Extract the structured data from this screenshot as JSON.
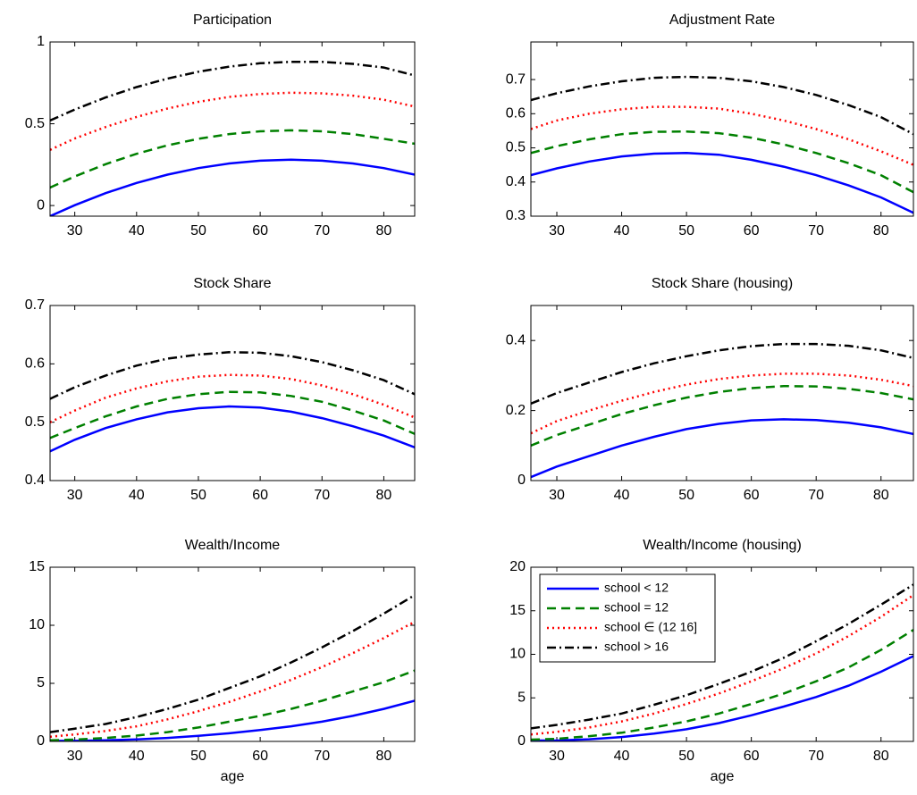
{
  "chart_data": [
    {
      "type": "line",
      "title": "Participation",
      "x": [
        26,
        30,
        35,
        40,
        45,
        50,
        55,
        60,
        65,
        70,
        75,
        80,
        85
      ],
      "xlim": [
        26,
        85
      ],
      "xticks": [
        30,
        40,
        50,
        60,
        70,
        80
      ],
      "ylim": [
        -0.065,
        1
      ],
      "yticks": [
        0,
        0.5,
        1
      ],
      "series": [
        {
          "color": "#0000ff",
          "style": "solid",
          "values": [
            -0.065,
            0.002,
            0.076,
            0.138,
            0.189,
            0.229,
            0.257,
            0.274,
            0.28,
            0.274,
            0.257,
            0.229,
            0.189
          ]
        },
        {
          "color": "#008000",
          "style": "dashed",
          "values": [
            0.11,
            0.178,
            0.253,
            0.316,
            0.368,
            0.408,
            0.437,
            0.454,
            0.46,
            0.454,
            0.437,
            0.408,
            0.378
          ]
        },
        {
          "color": "#ff0000",
          "style": "dotted",
          "values": [
            0.34,
            0.41,
            0.48,
            0.542,
            0.593,
            0.634,
            0.664,
            0.682,
            0.69,
            0.686,
            0.672,
            0.647,
            0.605
          ]
        },
        {
          "color": "#000000",
          "style": "dashdot",
          "values": [
            0.52,
            0.587,
            0.661,
            0.724,
            0.776,
            0.818,
            0.849,
            0.87,
            0.879,
            0.878,
            0.866,
            0.844,
            0.795
          ]
        }
      ]
    },
    {
      "type": "line",
      "title": "Adjustment Rate",
      "x": [
        26,
        30,
        35,
        40,
        45,
        50,
        55,
        60,
        65,
        70,
        75,
        80,
        85
      ],
      "xlim": [
        26,
        85
      ],
      "xticks": [
        30,
        40,
        50,
        60,
        70,
        80
      ],
      "ylim": [
        0.3,
        0.81
      ],
      "yticks": [
        0.3,
        0.4,
        0.5,
        0.6,
        0.7
      ],
      "series": [
        {
          "color": "#0000ff",
          "style": "solid",
          "values": [
            0.42,
            0.44,
            0.46,
            0.475,
            0.483,
            0.485,
            0.48,
            0.465,
            0.445,
            0.42,
            0.39,
            0.355,
            0.31
          ]
        },
        {
          "color": "#008000",
          "style": "dashed",
          "values": [
            0.485,
            0.505,
            0.525,
            0.54,
            0.547,
            0.548,
            0.543,
            0.53,
            0.51,
            0.485,
            0.455,
            0.42,
            0.37
          ]
        },
        {
          "color": "#ff0000",
          "style": "dotted",
          "values": [
            0.555,
            0.58,
            0.6,
            0.613,
            0.62,
            0.62,
            0.615,
            0.6,
            0.58,
            0.555,
            0.525,
            0.49,
            0.45
          ]
        },
        {
          "color": "#000000",
          "style": "dashdot",
          "values": [
            0.64,
            0.66,
            0.68,
            0.695,
            0.705,
            0.708,
            0.705,
            0.695,
            0.678,
            0.655,
            0.625,
            0.59,
            0.54
          ]
        }
      ]
    },
    {
      "type": "line",
      "title": "Stock Share",
      "x": [
        26,
        30,
        35,
        40,
        45,
        50,
        55,
        60,
        65,
        70,
        75,
        80,
        85
      ],
      "xlim": [
        26,
        85
      ],
      "xticks": [
        30,
        40,
        50,
        60,
        70,
        80
      ],
      "ylim": [
        0.4,
        0.7
      ],
      "yticks": [
        0.4,
        0.5,
        0.6,
        0.7
      ],
      "series": [
        {
          "color": "#0000ff",
          "style": "solid",
          "values": [
            0.45,
            0.47,
            0.49,
            0.505,
            0.517,
            0.524,
            0.527,
            0.525,
            0.518,
            0.507,
            0.493,
            0.477,
            0.457
          ]
        },
        {
          "color": "#008000",
          "style": "dashed",
          "values": [
            0.473,
            0.49,
            0.51,
            0.527,
            0.54,
            0.548,
            0.552,
            0.551,
            0.545,
            0.535,
            0.52,
            0.503,
            0.48
          ]
        },
        {
          "color": "#ff0000",
          "style": "dotted",
          "values": [
            0.5,
            0.52,
            0.542,
            0.558,
            0.57,
            0.578,
            0.581,
            0.58,
            0.574,
            0.563,
            0.548,
            0.53,
            0.508
          ]
        },
        {
          "color": "#000000",
          "style": "dashdot",
          "values": [
            0.54,
            0.56,
            0.58,
            0.597,
            0.609,
            0.616,
            0.62,
            0.619,
            0.613,
            0.603,
            0.589,
            0.572,
            0.548
          ]
        }
      ]
    },
    {
      "type": "line",
      "title": "Stock Share (housing)",
      "x": [
        26,
        30,
        35,
        40,
        45,
        50,
        55,
        60,
        65,
        70,
        75,
        80,
        85
      ],
      "xlim": [
        26,
        85
      ],
      "xticks": [
        30,
        40,
        50,
        60,
        70,
        80
      ],
      "ylim": [
        0,
        0.5
      ],
      "yticks": [
        0,
        0.2,
        0.4
      ],
      "series": [
        {
          "color": "#0000ff",
          "style": "solid",
          "values": [
            0.01,
            0.04,
            0.07,
            0.1,
            0.125,
            0.147,
            0.162,
            0.172,
            0.175,
            0.173,
            0.165,
            0.152,
            0.133
          ]
        },
        {
          "color": "#008000",
          "style": "dashed",
          "values": [
            0.1,
            0.13,
            0.16,
            0.19,
            0.215,
            0.237,
            0.253,
            0.264,
            0.27,
            0.269,
            0.262,
            0.25,
            0.232
          ]
        },
        {
          "color": "#ff0000",
          "style": "dotted",
          "values": [
            0.135,
            0.17,
            0.2,
            0.228,
            0.253,
            0.274,
            0.29,
            0.3,
            0.305,
            0.305,
            0.3,
            0.288,
            0.27
          ]
        },
        {
          "color": "#000000",
          "style": "dashdot",
          "values": [
            0.22,
            0.25,
            0.28,
            0.31,
            0.335,
            0.355,
            0.372,
            0.384,
            0.39,
            0.39,
            0.385,
            0.372,
            0.35
          ]
        }
      ]
    },
    {
      "type": "line",
      "title": "Wealth/Income",
      "xlabel": "age",
      "x": [
        26,
        30,
        35,
        40,
        45,
        50,
        55,
        60,
        65,
        70,
        75,
        80,
        85
      ],
      "xlim": [
        26,
        85
      ],
      "xticks": [
        30,
        40,
        50,
        60,
        70,
        80
      ],
      "ylim": [
        0,
        15
      ],
      "yticks": [
        0,
        5,
        10,
        15
      ],
      "series": [
        {
          "color": "#0000ff",
          "style": "solid",
          "values": [
            0.05,
            0.05,
            0.1,
            0.18,
            0.3,
            0.48,
            0.7,
            0.98,
            1.3,
            1.7,
            2.2,
            2.8,
            3.5
          ]
        },
        {
          "color": "#008000",
          "style": "dashed",
          "values": [
            0.1,
            0.15,
            0.3,
            0.5,
            0.8,
            1.2,
            1.7,
            2.2,
            2.8,
            3.5,
            4.3,
            5.1,
            6.1
          ]
        },
        {
          "color": "#ff0000",
          "style": "dotted",
          "values": [
            0.4,
            0.6,
            0.9,
            1.3,
            1.9,
            2.6,
            3.4,
            4.3,
            5.3,
            6.4,
            7.6,
            8.9,
            10.3
          ]
        },
        {
          "color": "#000000",
          "style": "dashdot",
          "values": [
            0.8,
            1.1,
            1.5,
            2.1,
            2.8,
            3.6,
            4.6,
            5.6,
            6.8,
            8.1,
            9.5,
            11,
            12.6
          ]
        }
      ]
    },
    {
      "type": "line",
      "title": "Wealth/Income (housing)",
      "xlabel": "age",
      "legend": "upper left",
      "x": [
        26,
        30,
        35,
        40,
        45,
        50,
        55,
        60,
        65,
        70,
        75,
        80,
        85
      ],
      "xlim": [
        26,
        85
      ],
      "xticks": [
        30,
        40,
        50,
        60,
        70,
        80
      ],
      "ylim": [
        0,
        20
      ],
      "yticks": [
        0,
        5,
        10,
        15,
        20
      ],
      "series": [
        {
          "name": "school < 12",
          "color": "#0000ff",
          "style": "solid",
          "values": [
            0.1,
            0.1,
            0.25,
            0.5,
            0.9,
            1.4,
            2.1,
            3,
            4,
            5.1,
            6.4,
            8,
            9.8
          ]
        },
        {
          "name": "school = 12",
          "color": "#008000",
          "style": "dashed",
          "values": [
            0.2,
            0.3,
            0.6,
            1,
            1.6,
            2.3,
            3.2,
            4.3,
            5.5,
            6.9,
            8.5,
            10.5,
            12.8
          ]
        },
        {
          "name": "school ∈ (12 16]",
          "color": "#ff0000",
          "style": "dotted",
          "values": [
            0.8,
            1.1,
            1.6,
            2.3,
            3.2,
            4.3,
            5.5,
            6.9,
            8.4,
            10.1,
            12.1,
            14.3,
            16.8
          ]
        },
        {
          "name": "school > 16",
          "color": "#000000",
          "style": "dashdot",
          "values": [
            1.5,
            1.9,
            2.5,
            3.2,
            4.2,
            5.3,
            6.6,
            8,
            9.6,
            11.5,
            13.5,
            15.7,
            18
          ]
        }
      ]
    }
  ]
}
